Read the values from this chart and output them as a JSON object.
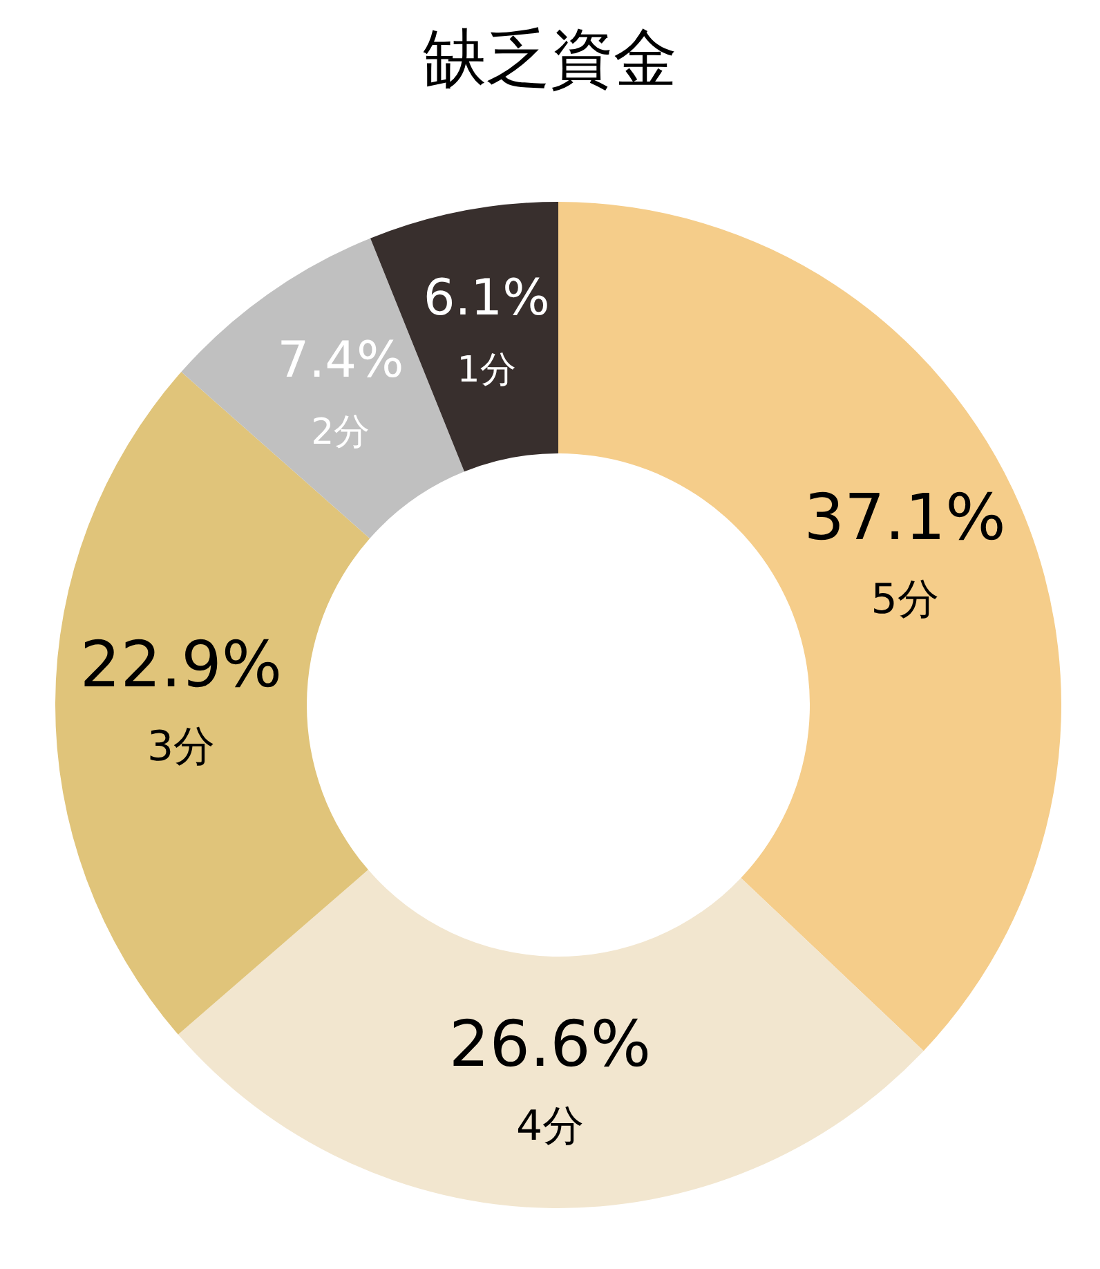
{
  "chart_data": {
    "type": "donut",
    "title": "缺乏資金",
    "categories": [
      "5分",
      "4分",
      "3分",
      "2分",
      "1分"
    ],
    "values": [
      37.1,
      26.6,
      22.9,
      7.4,
      6.1
    ],
    "colors": [
      "#f5cd8a",
      "#f2e6cf",
      "#e0c47a",
      "#c0c0c0",
      "#382f2d"
    ],
    "value_labels": [
      "37.1%",
      "26.6%",
      "22.9%",
      "7.4%",
      "6.1%"
    ]
  }
}
